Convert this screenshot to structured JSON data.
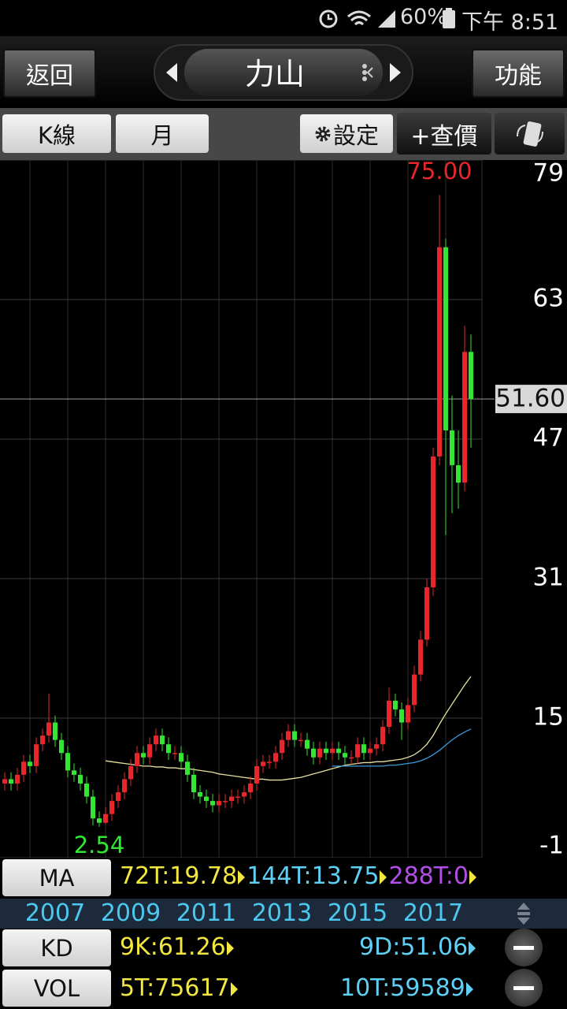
{
  "status_bar": {
    "battery": "60%",
    "time": "下午 8:51"
  },
  "header": {
    "back": "返回",
    "title": "力山",
    "function": "功能"
  },
  "toolbar": {
    "k_line": "K線",
    "period": "月",
    "settings": "設定",
    "query": "+查價"
  },
  "chart_data": {
    "type": "candlestick",
    "categories": [
      null,
      null,
      null,
      null,
      null,
      null,
      null,
      null,
      "2007",
      null,
      null,
      null,
      null,
      null,
      null,
      null,
      null,
      null,
      null,
      null,
      "2009",
      null,
      null,
      null,
      null,
      null,
      null,
      null,
      null,
      null,
      null,
      null,
      "2011",
      null,
      null,
      null,
      null,
      null,
      null,
      null,
      null,
      null,
      null,
      null,
      "2013",
      null,
      null,
      null,
      null,
      null,
      null,
      null,
      null,
      null,
      null,
      null,
      "2015",
      null,
      null,
      null,
      null,
      null,
      null,
      null,
      null,
      null,
      null,
      null,
      "2017",
      null,
      null,
      null,
      null,
      null,
      null
    ],
    "open": [
      7.5,
      8,
      7.5,
      8.5,
      10,
      9.5,
      12,
      13,
      14.5,
      12.5,
      11,
      9,
      8.5,
      7.5,
      6,
      3.5,
      3,
      4,
      5.5,
      6.5,
      8,
      9.5,
      11,
      10.5,
      12,
      13,
      12,
      11,
      11,
      10,
      8.5,
      6.5,
      6,
      5.5,
      5,
      5.5,
      5.5,
      6,
      6,
      6.5,
      7.5,
      9.5,
      10,
      10,
      11,
      12.5,
      13.5,
      12.5,
      12.5,
      11.5,
      10.5,
      11.5,
      11,
      11.5,
      11,
      10.5,
      10.5,
      12,
      11,
      11.5,
      12,
      14,
      17,
      16,
      14.5,
      16.5,
      20,
      24,
      30,
      45,
      69,
      48,
      44,
      42,
      57
    ],
    "high": [
      8.8,
      8.8,
      9.3,
      10.8,
      10.8,
      12.8,
      13.8,
      17.8,
      15.3,
      13.3,
      11.8,
      9.8,
      9.3,
      8.3,
      6.8,
      4.3,
      4.8,
      6.3,
      7.3,
      8.8,
      10.3,
      11.8,
      11.8,
      12.8,
      13.8,
      13.8,
      12.8,
      11.8,
      11.8,
      10.8,
      9.3,
      7.3,
      6.8,
      6.3,
      6.3,
      6.3,
      6.8,
      6.8,
      7.3,
      8.3,
      10.3,
      10.8,
      10.8,
      11.8,
      13.3,
      14.3,
      14.3,
      13.3,
      13.3,
      12.3,
      12.3,
      12.3,
      12.3,
      12.3,
      11.8,
      11.3,
      12.8,
      12.8,
      12.3,
      12.8,
      14.8,
      18.5,
      17.8,
      16.8,
      17.3,
      21,
      25,
      31,
      46,
      75,
      70,
      52,
      48,
      60,
      59
    ],
    "low": [
      6.7,
      6.7,
      6.7,
      7.7,
      8.7,
      8.7,
      11.2,
      12.2,
      11.7,
      10.2,
      8.2,
      7.7,
      6.7,
      5.2,
      2.7,
      2.54,
      2.8,
      3.2,
      4.7,
      5.7,
      7.2,
      8.7,
      9.7,
      9.7,
      11.2,
      11.2,
      10.2,
      10.2,
      9.2,
      7.7,
      5.7,
      5.2,
      4.7,
      4.2,
      4.2,
      4.7,
      4.7,
      5.2,
      5.2,
      5.7,
      6.7,
      8.7,
      9.2,
      9.2,
      10.2,
      11.7,
      11.7,
      11.7,
      10.7,
      9.7,
      9.7,
      10.2,
      10.2,
      10.2,
      9.7,
      9.7,
      9.7,
      10.2,
      10.2,
      10.7,
      11.2,
      13.2,
      15.2,
      12.5,
      13.7,
      15.7,
      19.2,
      23.2,
      29,
      44,
      36,
      38.5,
      39,
      41,
      46
    ],
    "close": [
      8,
      7.5,
      8.5,
      10,
      9.5,
      12,
      13,
      14.5,
      12.5,
      11,
      9,
      8.5,
      7.5,
      6,
      3.5,
      3,
      4,
      5.5,
      6.5,
      8,
      9.5,
      11,
      10.5,
      12,
      13,
      12,
      11,
      11,
      10,
      8.5,
      6.5,
      6,
      5.5,
      5,
      5.5,
      5.5,
      6,
      6,
      6.5,
      7.5,
      9.5,
      10,
      10,
      11,
      12.5,
      13.5,
      12.5,
      12.5,
      11.5,
      10.5,
      11.5,
      11,
      11.5,
      11,
      10.5,
      10.5,
      12,
      11,
      11.5,
      12,
      14,
      17,
      16,
      14.5,
      16.5,
      20,
      24,
      30,
      45,
      69,
      48,
      44,
      42,
      57,
      51.6
    ],
    "up_color": "#e8262b",
    "down_color": "#33e633",
    "series": [
      {
        "color": "#e8e0a0",
        "values": [
          null,
          null,
          null,
          null,
          null,
          null,
          null,
          null,
          null,
          null,
          null,
          null,
          null,
          null,
          null,
          null,
          10.1,
          10.0,
          9.9,
          9.8,
          9.7,
          9.6,
          9.5,
          9.5,
          9.4,
          9.4,
          9.3,
          9.3,
          9.2,
          9.2,
          9.1,
          9.0,
          8.9,
          8.8,
          8.6,
          8.5,
          8.4,
          8.3,
          8.2,
          8.1,
          8.0,
          8.0,
          7.9,
          7.9,
          7.9,
          8.0,
          8.1,
          8.2,
          8.4,
          8.6,
          8.8,
          9.0,
          9.2,
          9.4,
          9.6,
          9.7,
          9.8,
          9.9,
          9.9,
          10.0,
          10.0,
          10.1,
          10.2,
          10.3,
          10.5,
          10.8,
          11.3,
          12.0,
          13.0,
          14.3,
          15.5,
          16.6,
          17.7,
          18.8,
          19.78
        ]
      },
      {
        "color": "#3a9ad8",
        "values": [
          null,
          null,
          null,
          null,
          null,
          null,
          null,
          null,
          null,
          null,
          null,
          null,
          null,
          null,
          null,
          null,
          null,
          null,
          null,
          null,
          null,
          null,
          null,
          null,
          null,
          null,
          null,
          null,
          null,
          null,
          null,
          null,
          null,
          null,
          null,
          null,
          null,
          null,
          null,
          null,
          null,
          null,
          null,
          null,
          null,
          null,
          null,
          null,
          null,
          null,
          null,
          null,
          9.5,
          9.5,
          9.5,
          9.5,
          9.5,
          9.5,
          9.5,
          9.5,
          9.5,
          9.6,
          9.6,
          9.7,
          9.8,
          9.9,
          10.1,
          10.4,
          10.8,
          11.3,
          11.9,
          12.5,
          13.0,
          13.4,
          13.75
        ]
      }
    ],
    "ylim": [
      -1,
      79
    ],
    "yticks": [
      79,
      63,
      47,
      31,
      15,
      -1
    ],
    "grid": true,
    "high_label": "75.00",
    "low_label": "2.54",
    "last_price": 51.6,
    "last_price_label": "51.60"
  },
  "ma_panel": {
    "button": "MA",
    "items": [
      {
        "text": "72T:19.78",
        "color": "#f2e640"
      },
      {
        "text": "144T:13.75",
        "color": "#5fd0f5"
      },
      {
        "text": "288T:0",
        "color": "#b44ee8"
      }
    ]
  },
  "kd_panel": {
    "button": "KD",
    "k": "9K:61.26",
    "d": "9D:51.06"
  },
  "vol_panel": {
    "button": "VOL",
    "short": "5T:75617",
    "long": "10T:59589"
  }
}
